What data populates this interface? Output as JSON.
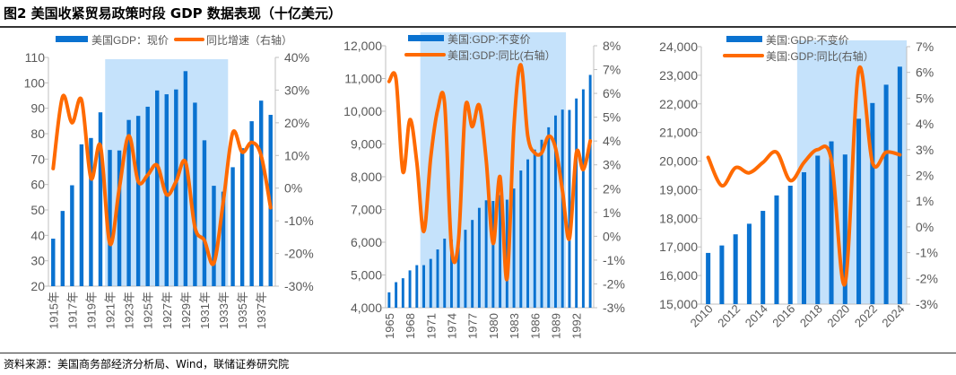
{
  "header": {
    "title": "图2  美国收紧贸易政策时段 GDP 数据表现（十亿美元）"
  },
  "footer": {
    "source": "资料来源：美国商务部经济分析局、Wind，联储证券研究院"
  },
  "colors": {
    "bar": "#0a72d0",
    "line": "#ff6a00",
    "shade": "#c5e2fb",
    "axis": "#bfbfbf",
    "text": "#595959"
  },
  "chart_data": [
    {
      "type": "bar+line",
      "legend": {
        "bar": "美国GDP：现价",
        "line": "同比增速（右轴）"
      },
      "legend_placement": "top",
      "x": [
        1915,
        1916,
        1917,
        1918,
        1919,
        1920,
        1921,
        1922,
        1923,
        1924,
        1925,
        1926,
        1927,
        1928,
        1929,
        1930,
        1931,
        1932,
        1933,
        1934,
        1935,
        1936,
        1937,
        1938
      ],
      "x_tick_labels": [
        "1915年",
        "1917年",
        "1919年",
        "1921年",
        "1923年",
        "1925年",
        "1927年",
        "1929年",
        "1931年",
        "1933年",
        "1935年",
        "1937年"
      ],
      "bar_values": [
        38.7,
        49.6,
        59.7,
        75.8,
        78.3,
        88.4,
        73.6,
        73.4,
        85.4,
        87.0,
        90.6,
        97.0,
        95.5,
        97.4,
        104.6,
        92.2,
        77.4,
        59.5,
        57.2,
        66.8,
        74.3,
        84.9,
        93.0,
        87.4
      ],
      "line_values": [
        6,
        28,
        20,
        27,
        3,
        13,
        -17,
        0,
        16,
        2,
        4,
        7,
        -2,
        2,
        8,
        -12,
        -16,
        -23,
        -4,
        17,
        11,
        14,
        10,
        -6
      ],
      "ylim": [
        20,
        110
      ],
      "y_ticks": [
        "20",
        "30",
        "40",
        "50",
        "60",
        "70",
        "80",
        "90",
        "100",
        "110"
      ],
      "y2lim": [
        -30,
        40
      ],
      "y2_ticks": [
        "-30%",
        "-20%",
        "-10%",
        "0%",
        "10%",
        "20%",
        "30%",
        "40%"
      ],
      "shaded_period": [
        1921,
        1933
      ],
      "grid": false
    },
    {
      "type": "bar+line",
      "legend": {
        "bar": "美国:GDP:不变价",
        "line": "美国:GDP:同比(右轴）"
      },
      "legend_placement": "top",
      "x": [
        1965,
        1966,
        1967,
        1968,
        1969,
        1970,
        1971,
        1972,
        1973,
        1974,
        1975,
        1976,
        1977,
        1978,
        1979,
        1980,
        1981,
        1982,
        1983,
        1984,
        1985,
        1986,
        1987,
        1988,
        1989,
        1990,
        1991,
        1992,
        1993,
        1994
      ],
      "x_tick_labels": [
        "1965",
        "1968",
        "1971",
        "1974",
        "1977",
        "1980",
        "1983",
        "1986",
        "1989",
        "1992"
      ],
      "bar_values": [
        4470,
        4780,
        4900,
        5140,
        5300,
        5300,
        5490,
        5780,
        6110,
        6080,
        6070,
        6380,
        6680,
        7050,
        7280,
        7260,
        7440,
        7300,
        7640,
        8190,
        8530,
        8830,
        9130,
        9510,
        9870,
        10050,
        10040,
        10390,
        10670,
        11110
      ],
      "line_values": [
        6.5,
        6.6,
        2.7,
        4.9,
        3.1,
        0.2,
        3.3,
        5.3,
        5.6,
        -0.5,
        -0.2,
        5.4,
        4.6,
        5.5,
        3.2,
        -0.3,
        2.5,
        -1.8,
        4.6,
        7.2,
        4.2,
        3.5,
        3.5,
        4.2,
        3.7,
        1.9,
        -0.1,
        3.5,
        2.8,
        4.0
      ],
      "ylim": [
        4000,
        12000
      ],
      "y_ticks": [
        "4,000",
        "5,000",
        "6,000",
        "7,000",
        "8,000",
        "9,000",
        "10,000",
        "11,000",
        "12,000"
      ],
      "y2lim": [
        -3,
        8
      ],
      "y2_ticks": [
        "-3%",
        "-2%",
        "-1%",
        "0%",
        "1%",
        "2%",
        "3%",
        "4%",
        "5%",
        "6%",
        "7%",
        "8%"
      ],
      "shaded_period": [
        1970,
        1990
      ],
      "grid": false
    },
    {
      "type": "bar+line",
      "legend": {
        "bar": "美国:GDP:不变价",
        "line": "美国:GDP:同比(右轴）"
      },
      "legend_placement": "top",
      "x": [
        2010,
        2011,
        2012,
        2013,
        2014,
        2015,
        2016,
        2017,
        2018,
        2019,
        2020,
        2021,
        2022,
        2023,
        2024
      ],
      "x_tick_labels": [
        "2010",
        "2012",
        "2014",
        "2016",
        "2018",
        "2020",
        "2022",
        "2024"
      ],
      "bar_values": [
        16790,
        17050,
        17440,
        17810,
        18260,
        18800,
        19140,
        19610,
        20190,
        20690,
        20230,
        21480,
        22030,
        22670,
        23300
      ],
      "line_values": [
        2.7,
        1.6,
        2.3,
        2.1,
        2.5,
        2.9,
        1.8,
        2.5,
        3.0,
        2.6,
        -2.2,
        6.1,
        2.5,
        2.9,
        2.8
      ],
      "ylim": [
        15000,
        24000
      ],
      "y_ticks": [
        "15,000",
        "16,000",
        "17,000",
        "18,000",
        "19,000",
        "20,000",
        "21,000",
        "22,000",
        "23,000",
        "24,000"
      ],
      "y2lim": [
        -3,
        7
      ],
      "y2_ticks": [
        "-3%",
        "-2%",
        "-1%",
        "0%",
        "1%",
        "2%",
        "3%",
        "4%",
        "5%",
        "6%",
        "7%"
      ],
      "shaded_period": [
        2017,
        2024
      ],
      "grid": false
    }
  ]
}
